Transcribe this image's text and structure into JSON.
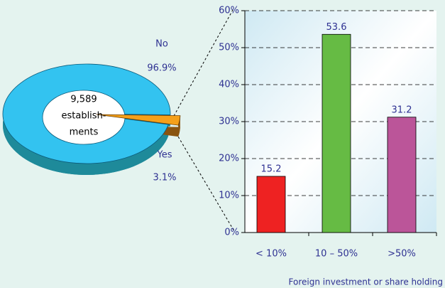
{
  "chart_data": [
    {
      "type": "pie",
      "center_label": [
        "9,589",
        "establish-",
        "ments"
      ],
      "categories": [
        "No",
        "Yes"
      ],
      "values": [
        96.9,
        3.1
      ],
      "value_labels": [
        "96.9%",
        "3.1%"
      ],
      "colors": [
        "#33c3f0",
        "#f5a01a"
      ],
      "side_colors": [
        "#1e8a9a",
        "#8a5410"
      ]
    },
    {
      "type": "bar",
      "categories": [
        "< 10%",
        "10 – 50%",
        ">50%"
      ],
      "values": [
        15.2,
        53.6,
        31.2
      ],
      "colors": [
        "#ee2222",
        "#66bb44",
        "#bb5599"
      ],
      "ylim": [
        0,
        60
      ],
      "yticks": [
        {
          "value": 0,
          "label": "0%"
        },
        {
          "value": 10,
          "label": "10%"
        },
        {
          "value": 20,
          "label": "20%"
        },
        {
          "value": 30,
          "label": "30%"
        },
        {
          "value": 40,
          "label": "40%"
        },
        {
          "value": 50,
          "label": "50%"
        },
        {
          "value": 60,
          "label": "60%"
        }
      ],
      "xlabel": "Foreign investment or share holding",
      "grid": true
    }
  ]
}
